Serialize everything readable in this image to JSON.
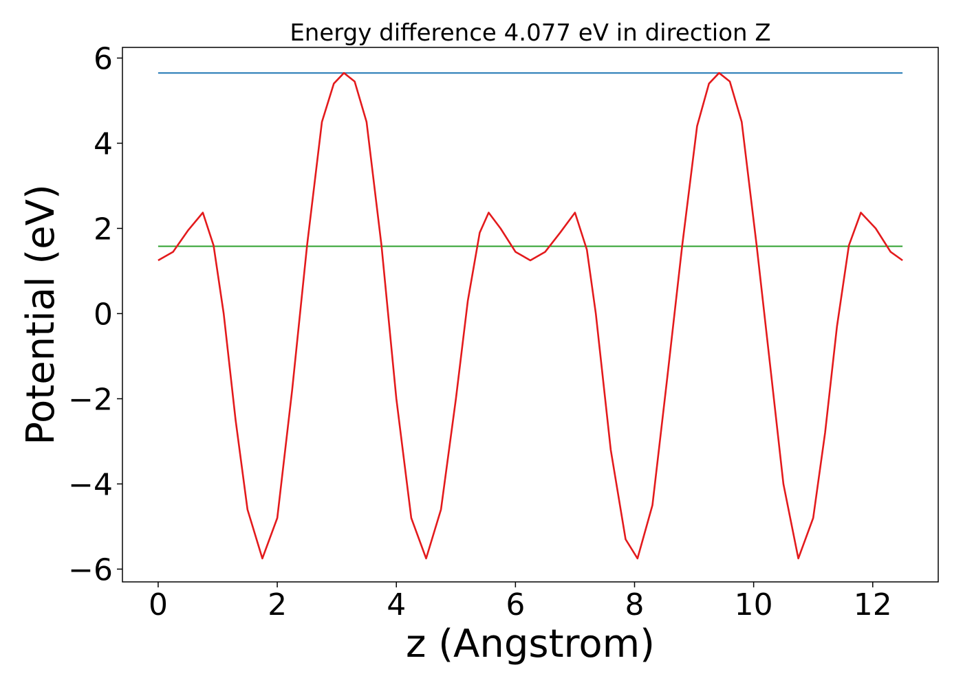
{
  "chart_data": {
    "type": "line",
    "title": "Energy difference 4.077 eV in direction Z",
    "xlabel": "z (Angstrom)",
    "ylabel": "Potential (eV)",
    "xlim": [
      -0.6,
      13.1
    ],
    "ylim": [
      -6.3,
      6.25
    ],
    "xticks": [
      0,
      2,
      4,
      6,
      8,
      10,
      12
    ],
    "xtick_labels": [
      "0",
      "2",
      "4",
      "6",
      "8",
      "10",
      "12"
    ],
    "yticks": [
      -6,
      -4,
      -2,
      0,
      2,
      4,
      6
    ],
    "ytick_labels": [
      "−6",
      "−4",
      "−2",
      "0",
      "2",
      "4",
      "6"
    ],
    "grid": false,
    "series": [
      {
        "color": "#1f77b4",
        "x": [
          0,
          12.5
        ],
        "y": [
          5.65,
          5.65
        ]
      },
      {
        "color": "#2ca02c",
        "x": [
          0,
          12.5
        ],
        "y": [
          1.58,
          1.58
        ]
      },
      {
        "color": "#e31a1c",
        "x": [
          0,
          0.25,
          0.5,
          0.75,
          0.93,
          1.1,
          1.3,
          1.5,
          1.75,
          2.0,
          2.25,
          2.5,
          2.75,
          2.95,
          3.12,
          3.3,
          3.5,
          3.75,
          4.0,
          4.25,
          4.5,
          4.75,
          5.0,
          5.2,
          5.4,
          5.55,
          5.75,
          6.0,
          6.25,
          6.5,
          6.75,
          7.0,
          7.2,
          7.35,
          7.6,
          7.85,
          8.05,
          8.3,
          8.55,
          8.8,
          9.05,
          9.25,
          9.42,
          9.6,
          9.8,
          10.05,
          10.3,
          10.5,
          10.75,
          11.0,
          11.2,
          11.4,
          11.6,
          11.8,
          12.05,
          12.3,
          12.5
        ],
        "y": [
          1.25,
          1.45,
          1.95,
          2.37,
          1.6,
          0.0,
          -2.5,
          -4.6,
          -5.75,
          -4.8,
          -1.8,
          1.6,
          4.5,
          5.4,
          5.65,
          5.45,
          4.5,
          1.6,
          -2.0,
          -4.8,
          -5.75,
          -4.6,
          -2.0,
          0.3,
          1.9,
          2.37,
          2.0,
          1.45,
          1.25,
          1.45,
          1.9,
          2.37,
          1.5,
          0.0,
          -3.2,
          -5.3,
          -5.75,
          -4.5,
          -1.5,
          1.6,
          4.4,
          5.4,
          5.65,
          5.45,
          4.5,
          1.6,
          -1.5,
          -4.0,
          -5.75,
          -4.8,
          -2.8,
          -0.3,
          1.6,
          2.37,
          2.0,
          1.45,
          1.25
        ]
      }
    ]
  }
}
